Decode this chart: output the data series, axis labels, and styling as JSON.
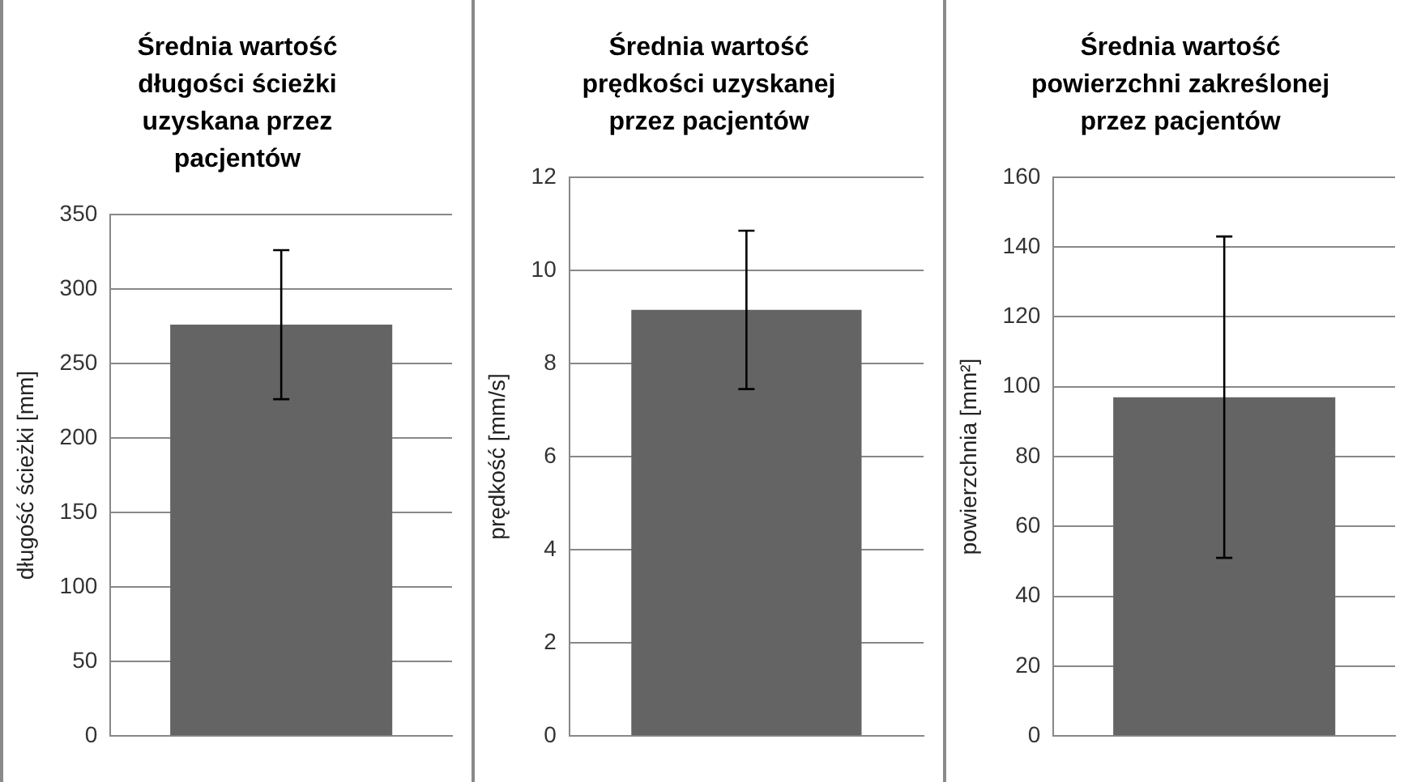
{
  "chart_data": [
    {
      "type": "bar",
      "title": "Średnia wartość długości ścieżki uzyskana przez pacjentów",
      "ylabel": "długość ścieżki [mm]",
      "categories": [
        null
      ],
      "values": [
        276
      ],
      "errors": [
        50
      ],
      "color": "#646464",
      "ylim": [
        0,
        350
      ],
      "yticks": [
        0,
        50,
        100,
        150,
        200,
        250,
        300,
        350
      ],
      "grid": "y",
      "legend": false
    },
    {
      "type": "bar",
      "title": "Średnia wartość prędkości uzyskanej przez pacjentów",
      "ylabel": "prędkość [mm/s]",
      "categories": [
        null
      ],
      "values": [
        9.15
      ],
      "errors": [
        1.7
      ],
      "color": "#646464",
      "ylim": [
        0,
        12
      ],
      "yticks": [
        0,
        2,
        4,
        6,
        8,
        10,
        12
      ],
      "grid": "y",
      "legend": false
    },
    {
      "type": "bar",
      "title": "Średnia wartość powierzchni zakreślonej przez pacjentów",
      "ylabel": "powierzchnia [mm²]",
      "categories": [
        null
      ],
      "values": [
        97
      ],
      "errors": [
        46
      ],
      "color": "#646464",
      "ylim": [
        0,
        160
      ],
      "yticks": [
        0,
        20,
        40,
        60,
        80,
        100,
        120,
        140,
        160
      ],
      "grid": "y",
      "legend": false
    }
  ]
}
